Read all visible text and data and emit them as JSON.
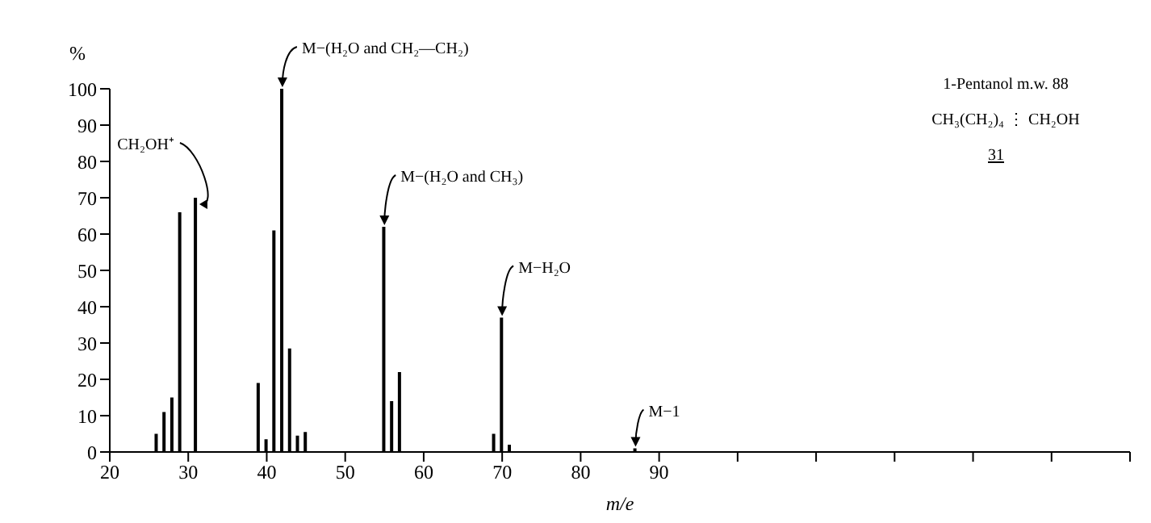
{
  "chart_data": {
    "type": "bar",
    "xlabel": "m/e",
    "ylabel": "%",
    "x": [
      26,
      27,
      28,
      29,
      31,
      39,
      40,
      41,
      42,
      43,
      44,
      45,
      55,
      56,
      57,
      69,
      70,
      71,
      87
    ],
    "values": [
      5,
      11,
      15,
      66,
      70,
      19,
      3.5,
      61,
      100,
      28.5,
      4.5,
      5.5,
      62,
      14,
      22,
      5,
      37,
      2,
      1
    ],
    "color": "#000000",
    "xlim": [
      20,
      150
    ],
    "xticks": [
      20,
      30,
      40,
      50,
      60,
      70,
      80,
      90,
      {
        "value": 100,
        "label": null
      },
      {
        "value": 110,
        "label": null
      },
      {
        "value": 120,
        "label": null
      },
      {
        "value": 130,
        "label": null
      },
      {
        "value": 140,
        "label": null
      },
      {
        "value": 150,
        "label": null
      }
    ],
    "ylim": [
      0,
      100
    ],
    "yticks": [
      0,
      10,
      20,
      30,
      40,
      50,
      60,
      70,
      80,
      90,
      100
    ],
    "grid": false,
    "legend": false,
    "annotations": [
      {
        "text": "M−(H₂O and CH₂—CH₂)",
        "x": 42,
        "y": 100
      },
      {
        "text": "CH₂OH⁺",
        "x": 31,
        "y": 70
      },
      {
        "text": "M−(H₂O and CH₃)",
        "x": 55,
        "y": 62
      },
      {
        "text": "M−H₂O",
        "x": 70,
        "y": 37
      },
      {
        "text": "M−1",
        "x": 87,
        "y": 1
      },
      "1-Pentanol m.w. 88",
      "CH₃(CH₂)₄ ⋮ CH₂OH",
      "31"
    ]
  }
}
